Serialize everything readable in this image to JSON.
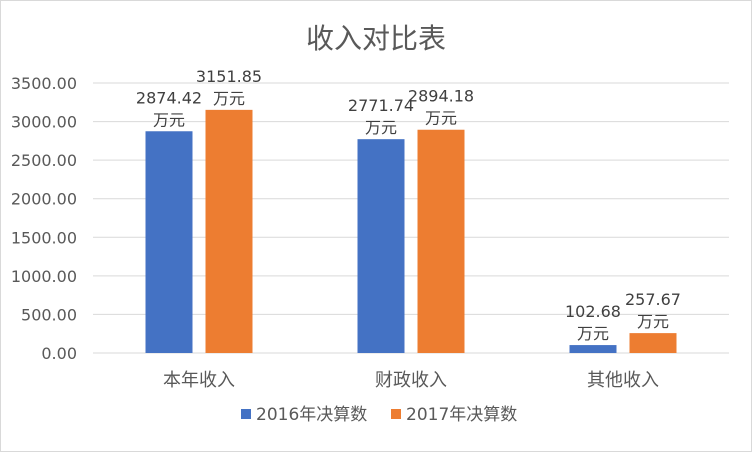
{
  "chart_data": {
    "type": "bar",
    "title": "收入对比表",
    "categories": [
      "本年收入",
      "财政收入",
      "其他收入"
    ],
    "series": [
      {
        "name": "2016年决算数",
        "color": "#4472C4",
        "values": [
          2874.42,
          2771.74,
          102.68
        ],
        "labels": [
          [
            "2874.42",
            "万元"
          ],
          [
            "2771.74",
            "万元"
          ],
          [
            "102.68",
            "万元"
          ]
        ]
      },
      {
        "name": "2017年决算数",
        "color": "#ED7D31",
        "values": [
          3151.85,
          2894.18,
          257.67
        ],
        "labels": [
          [
            "3151.85",
            "万元"
          ],
          [
            "2894.18",
            "万元"
          ],
          [
            "257.67",
            "万元"
          ]
        ]
      }
    ],
    "yticks": [
      "0.00",
      "500.00",
      "1000.00",
      "1500.00",
      "2000.00",
      "2500.00",
      "3000.00",
      "3500.00"
    ],
    "ylim": [
      0,
      3500
    ],
    "grid": true,
    "legend_position": "bottom"
  }
}
